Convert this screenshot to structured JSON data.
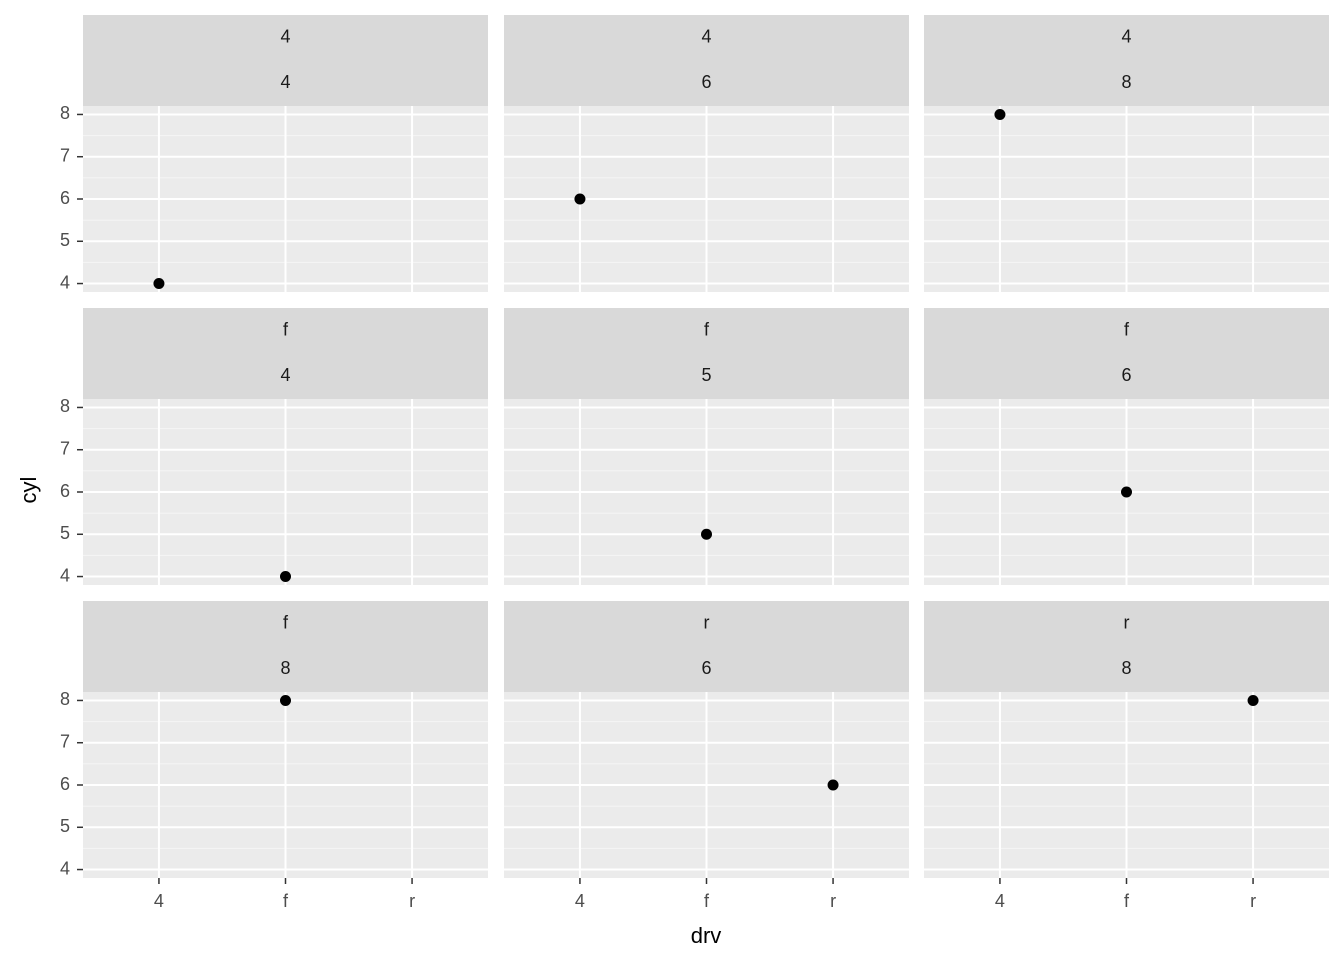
{
  "x_label": "drv",
  "y_label": "cyl",
  "categories": [
    "4",
    "f",
    "r"
  ],
  "ylim": [
    3.8,
    8.2
  ],
  "yticks": [
    4,
    5,
    6,
    7,
    8
  ],
  "grid": true,
  "point_color": "#000000",
  "chart_data": [
    {
      "type": "scatter",
      "strip": [
        "4",
        "4"
      ],
      "x": [
        "4"
      ],
      "values": [
        4
      ]
    },
    {
      "type": "scatter",
      "strip": [
        "4",
        "6"
      ],
      "x": [
        "4"
      ],
      "values": [
        6
      ]
    },
    {
      "type": "scatter",
      "strip": [
        "4",
        "8"
      ],
      "x": [
        "4"
      ],
      "values": [
        8
      ]
    },
    {
      "type": "scatter",
      "strip": [
        "f",
        "4"
      ],
      "x": [
        "f"
      ],
      "values": [
        4
      ]
    },
    {
      "type": "scatter",
      "strip": [
        "f",
        "5"
      ],
      "x": [
        "f"
      ],
      "values": [
        5
      ]
    },
    {
      "type": "scatter",
      "strip": [
        "f",
        "6"
      ],
      "x": [
        "f"
      ],
      "values": [
        6
      ]
    },
    {
      "type": "scatter",
      "strip": [
        "f",
        "8"
      ],
      "x": [
        "f"
      ],
      "values": [
        8
      ]
    },
    {
      "type": "scatter",
      "strip": [
        "r",
        "6"
      ],
      "x": [
        "r"
      ],
      "values": [
        6
      ]
    },
    {
      "type": "scatter",
      "strip": [
        "r",
        "8"
      ],
      "x": [
        "r"
      ],
      "values": [
        8
      ]
    }
  ]
}
